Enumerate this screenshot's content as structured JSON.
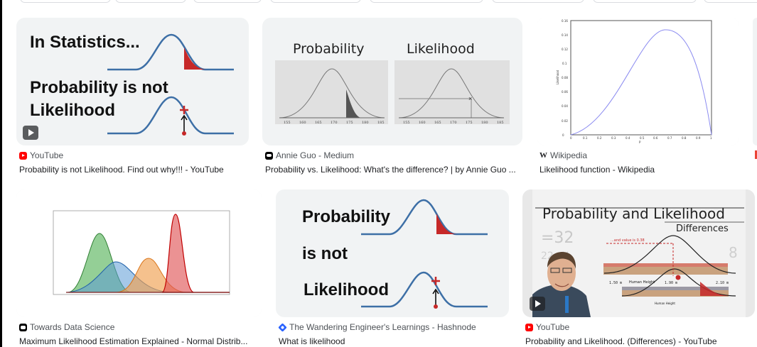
{
  "results": [
    {
      "source": "YouTube",
      "title": "Probability is not Likelihood. Find out why!!! - YouTube",
      "thumb": {
        "line1": "In Statistics...",
        "line2": "Probability is not",
        "line3": "Likelihood"
      }
    },
    {
      "source": "Annie Guo - Medium",
      "title": "Probability vs. Likelihood: What's the difference? | by Annie Guo ...",
      "thumb": {
        "left_title": "Probability",
        "right_title": "Likelihood",
        "ticks": [
          "155",
          "160",
          "165",
          "170",
          "175",
          "180",
          "185"
        ]
      }
    },
    {
      "source": "Wikipedia",
      "title": "Likelihood function - Wikipedia",
      "thumb": {
        "ylabel": "Likelihood",
        "xlabel": "P",
        "yticks": [
          "0",
          "0.02",
          "0.04",
          "0.06",
          "0.08",
          "0.1",
          "0.12",
          "0.14",
          "0.16"
        ],
        "xticks": [
          "0",
          "0.1",
          "0.2",
          "0.3",
          "0.4",
          "0.5",
          "0.6",
          "0.7",
          "0.8",
          "0.9",
          "1"
        ]
      }
    },
    {
      "source": "Towards Data Science",
      "title": "Maximum Likelihood Estimation Explained - Normal Distrib..."
    },
    {
      "source": "The Wandering Engineer's Learnings - Hashnode",
      "title": "What is likelihood",
      "thumb": {
        "line1": "Probability",
        "line2": "is not",
        "line3": "Likelihood"
      }
    },
    {
      "source": "YouTube",
      "title": "Probability and Likelihood. (Differences) - YouTube",
      "thumb": {
        "title": "Probability and Likelihood",
        "subtitle": "Differences",
        "annotation": "...and value is 0.38",
        "label_height": "Human Height",
        "scale": [
          "1.50 m",
          "1.90 m",
          "2.10 m"
        ]
      }
    }
  ],
  "colors": {
    "curve": "#3d6fa6",
    "red": "#c62828",
    "thumb_bg": "#f1f3f4"
  }
}
